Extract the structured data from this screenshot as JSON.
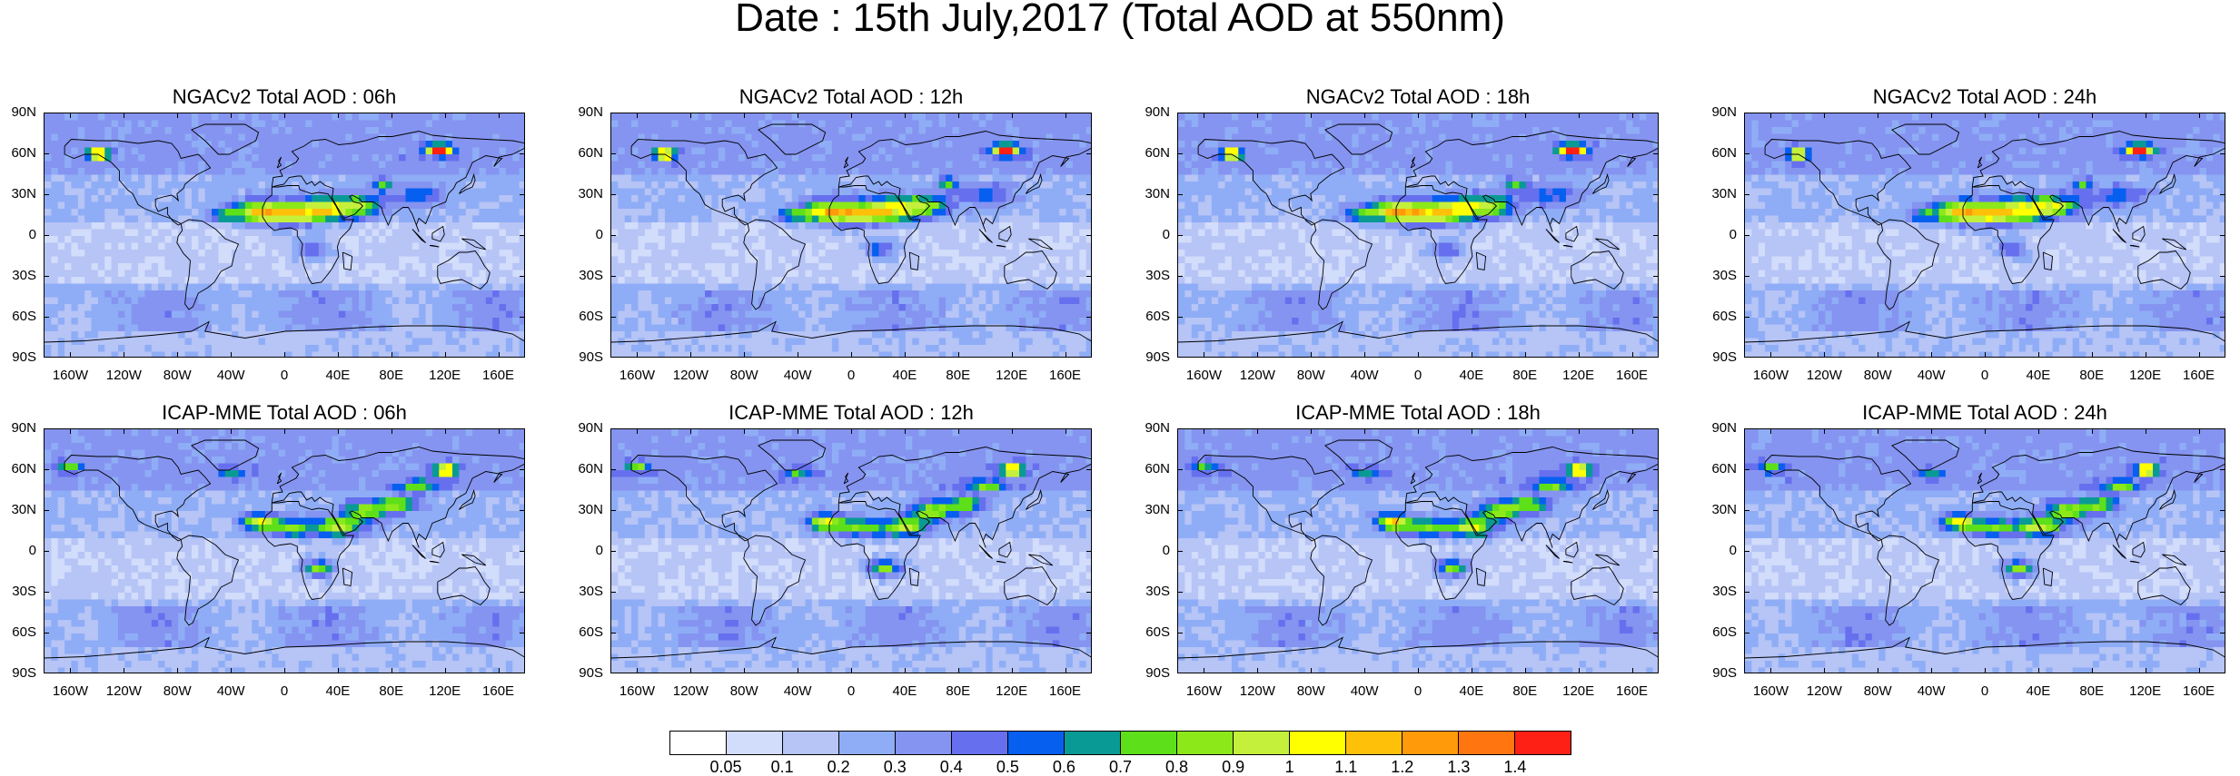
{
  "title": "Date : 15th July,2017 (Total AOD at 550nm)",
  "panels": [
    {
      "title": "NGACv2 Total AOD : 06h",
      "model": "ngac"
    },
    {
      "title": "NGACv2 Total AOD : 12h",
      "model": "ngac"
    },
    {
      "title": "NGACv2 Total AOD : 18h",
      "model": "ngac"
    },
    {
      "title": "NGACv2 Total AOD : 24h",
      "model": "ngac"
    },
    {
      "title": "ICAP-MME Total AOD : 06h",
      "model": "icap"
    },
    {
      "title": "ICAP-MME Total AOD : 12h",
      "model": "icap"
    },
    {
      "title": "ICAP-MME Total AOD : 18h",
      "model": "icap"
    },
    {
      "title": "ICAP-MME Total AOD : 24h",
      "model": "icap"
    }
  ],
  "axes": {
    "lat_labels": [
      "90N",
      "60N",
      "30N",
      "0",
      "30S",
      "60S",
      "90S"
    ],
    "lat_values": [
      90,
      60,
      30,
      0,
      -30,
      -60,
      -90
    ],
    "lon_labels": [
      "160W",
      "120W",
      "80W",
      "40W",
      "0",
      "40E",
      "80E",
      "120E",
      "160E"
    ],
    "lon_values": [
      -160,
      -120,
      -80,
      -40,
      0,
      40,
      80,
      120,
      160
    ],
    "lon_range": [
      -180,
      180
    ],
    "lat_range": [
      -90,
      90
    ]
  },
  "colorbar": {
    "labels": [
      "0.05",
      "0.1",
      "0.2",
      "0.3",
      "0.4",
      "0.5",
      "0.6",
      "0.7",
      "0.8",
      "0.9",
      "1",
      "1.1",
      "1.2",
      "1.3",
      "1.4"
    ],
    "colors": [
      "#ffffff",
      "#d2dcfb",
      "#b6c4f6",
      "#8fadf6",
      "#8594f0",
      "#6670ee",
      "#075ff0",
      "#0a9a95",
      "#5de019",
      "#8de81a",
      "#c4f03c",
      "#ffff00",
      "#ffc00a",
      "#ff9a0a",
      "#ff7610",
      "#ff2015"
    ]
  }
}
